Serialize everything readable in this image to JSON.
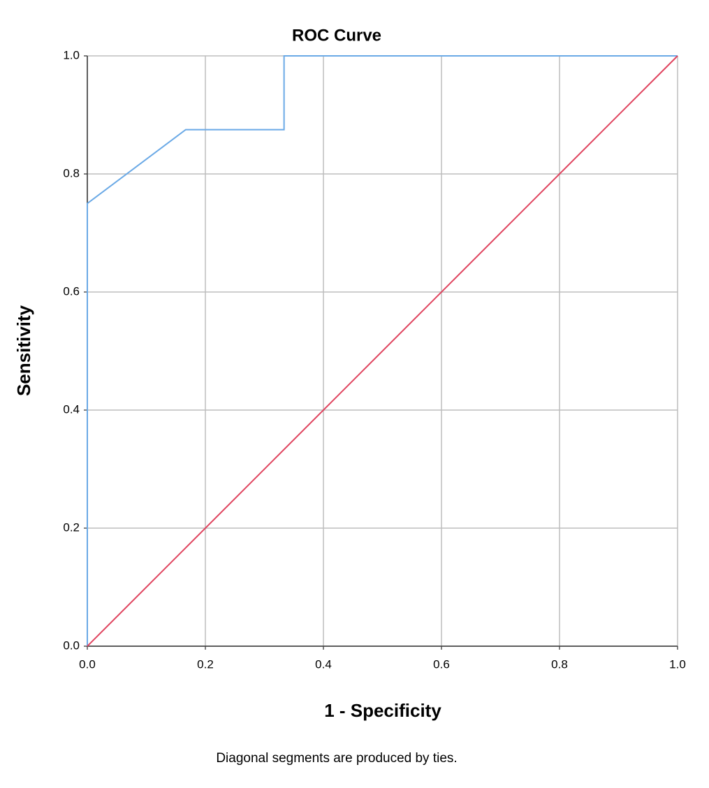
{
  "chart_data": {
    "type": "line",
    "title": "ROC Curve",
    "xlabel": "1 - Specificity",
    "ylabel": "Sensitivity",
    "annotation": "Diagonal segments are produced by ties.",
    "series": [
      {
        "color": "#6aa9e6",
        "x": [
          0,
          0,
          0.1667,
          0.3333,
          0.3333,
          1
        ],
        "values": [
          0,
          0.75,
          0.875,
          0.875,
          1,
          1
        ]
      },
      {
        "color": "#e0435e",
        "x": [
          0,
          1
        ],
        "values": [
          0,
          1
        ]
      }
    ],
    "xlim": [
      0,
      1
    ],
    "ylim": [
      0,
      1
    ],
    "xticks": [
      {
        "value": 0,
        "label": "0.0"
      },
      0.2,
      0.4,
      0.6,
      0.8,
      {
        "value": 1,
        "label": "1.0"
      }
    ],
    "yticks": [
      {
        "value": 0,
        "label": "0.0"
      },
      0.2,
      0.4,
      0.6,
      0.8,
      {
        "value": 1,
        "label": "1.0"
      }
    ],
    "grid": true
  }
}
